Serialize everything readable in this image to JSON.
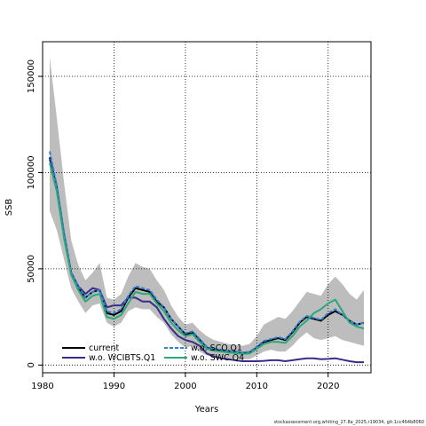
{
  "chart_data": {
    "type": "line",
    "title": "",
    "xlabel": "Years",
    "ylabel": "SSB",
    "xlim": [
      1980,
      2026
    ],
    "ylim": [
      -4000,
      168000
    ],
    "xticks": [
      1980,
      1990,
      2000,
      2010,
      2020
    ],
    "yticks": [
      0,
      50000,
      100000,
      150000
    ],
    "ytick_labels": [
      "0",
      "50000",
      "100000",
      "150000"
    ],
    "grid": "dotted",
    "legend_position": "bottom-left",
    "confidence_band": {
      "color": "#bdbdbd",
      "x": [
        1981,
        1982,
        1983,
        1984,
        1985,
        1986,
        1987,
        1988,
        1989,
        1990,
        1991,
        1992,
        1993,
        1994,
        1995,
        1996,
        1997,
        1998,
        1999,
        2000,
        2001,
        2002,
        2003,
        2004,
        2005,
        2006,
        2007,
        2008,
        2009,
        2010,
        2011,
        2012,
        2013,
        2014,
        2015,
        2016,
        2017,
        2018,
        2019,
        2020,
        2021,
        2022,
        2023,
        2024,
        2025
      ],
      "upper": [
        160000,
        128000,
        95000,
        65000,
        52000,
        44000,
        48000,
        53000,
        35000,
        34000,
        37000,
        46000,
        53000,
        51000,
        50000,
        44000,
        39000,
        31000,
        25000,
        21000,
        22000,
        18000,
        15000,
        13000,
        12000,
        11000,
        10500,
        10000,
        11000,
        15000,
        21000,
        23000,
        25000,
        24000,
        28000,
        33000,
        38000,
        37000,
        36000,
        42000,
        46000,
        42000,
        37000,
        34000,
        39000
      ],
      "lower": [
        80000,
        70000,
        55000,
        40000,
        33000,
        27000,
        31000,
        32000,
        22000,
        20000,
        22000,
        28000,
        30000,
        29000,
        29000,
        25000,
        22000,
        16000,
        12000,
        9000,
        10000,
        7000,
        5000,
        4500,
        4000,
        3500,
        3500,
        3000,
        3000,
        5000,
        7000,
        8000,
        7000,
        7000,
        10000,
        14000,
        17000,
        14000,
        13000,
        14000,
        15000,
        13000,
        12000,
        11000,
        10000
      ]
    },
    "x": [
      1981,
      1982,
      1983,
      1984,
      1985,
      1986,
      1987,
      1988,
      1989,
      1990,
      1991,
      1992,
      1993,
      1994,
      1995,
      1996,
      1997,
      1998,
      1999,
      2000,
      2001,
      2002,
      2003,
      2004,
      2005,
      2006,
      2007,
      2008,
      2009,
      2010,
      2011,
      2012,
      2013,
      2014,
      2015,
      2016,
      2017,
      2018,
      2019,
      2020,
      2021,
      2022,
      2023,
      2024,
      2025
    ],
    "series": [
      {
        "name": "current",
        "color": "#000000",
        "dash": "solid",
        "width": 2,
        "values": [
          108000,
          92000,
          68000,
          48000,
          40000,
          35000,
          38000,
          39000,
          27000,
          26000,
          28000,
          35000,
          40000,
          39000,
          38000,
          33000,
          30000,
          24000,
          20000,
          16000,
          17000,
          13000,
          9000,
          8000,
          7500,
          7000,
          6800,
          6200,
          6500,
          9000,
          12000,
          13000,
          14000,
          13000,
          17000,
          22000,
          25000,
          24000,
          23000,
          26000,
          28000,
          26000,
          23000,
          21000,
          22000
        ]
      },
      {
        "name": "w.o. WCIBTS.Q1",
        "color": "#3a2a8a",
        "dash": "solid",
        "width": 2,
        "values": [
          107000,
          91000,
          68000,
          48000,
          41000,
          37000,
          40000,
          39000,
          30000,
          31000,
          31000,
          35000,
          35000,
          33000,
          33000,
          30000,
          24000,
          19000,
          15000,
          13000,
          12000,
          10000,
          6000,
          4500,
          3500,
          3000,
          2500,
          2000,
          2000,
          2000,
          2200,
          2500,
          2500,
          2000,
          2500,
          3000,
          3500,
          3500,
          3000,
          3200,
          3500,
          2800,
          2000,
          1500,
          1500
        ]
      },
      {
        "name": "w.o. SCO.Q1",
        "color": "#2f7fd6",
        "dash": "dashed",
        "width": 2,
        "values": [
          111000,
          93000,
          69000,
          48000,
          41000,
          35000,
          38000,
          39000,
          28000,
          27000,
          29000,
          36000,
          41000,
          40000,
          39000,
          34000,
          30000,
          24000,
          20000,
          16500,
          17500,
          13500,
          9500,
          8500,
          8000,
          7300,
          7000,
          6500,
          6800,
          9500,
          12500,
          13500,
          14500,
          13500,
          17500,
          22500,
          25500,
          24500,
          23500,
          27000,
          29000,
          26000,
          23000,
          21000,
          22000
        ]
      },
      {
        "name": "w.o. SWC.Q4",
        "color": "#2aa87a",
        "dash": "solid",
        "width": 2,
        "values": [
          105000,
          90000,
          66000,
          47000,
          39000,
          33000,
          36000,
          37000,
          25000,
          24000,
          26000,
          32000,
          38000,
          37000,
          37000,
          32000,
          28000,
          22000,
          18000,
          15000,
          16000,
          12000,
          8500,
          7500,
          7000,
          6500,
          6300,
          5800,
          6000,
          8500,
          11000,
          12000,
          12000,
          11500,
          15000,
          20000,
          23000,
          27000,
          29000,
          32000,
          34000,
          28000,
          22000,
          20000,
          19000
        ]
      }
    ]
  },
  "footer_text": "stockassessment.org,whiting_27.8a_2025,r19034, git:1cc464b8060"
}
